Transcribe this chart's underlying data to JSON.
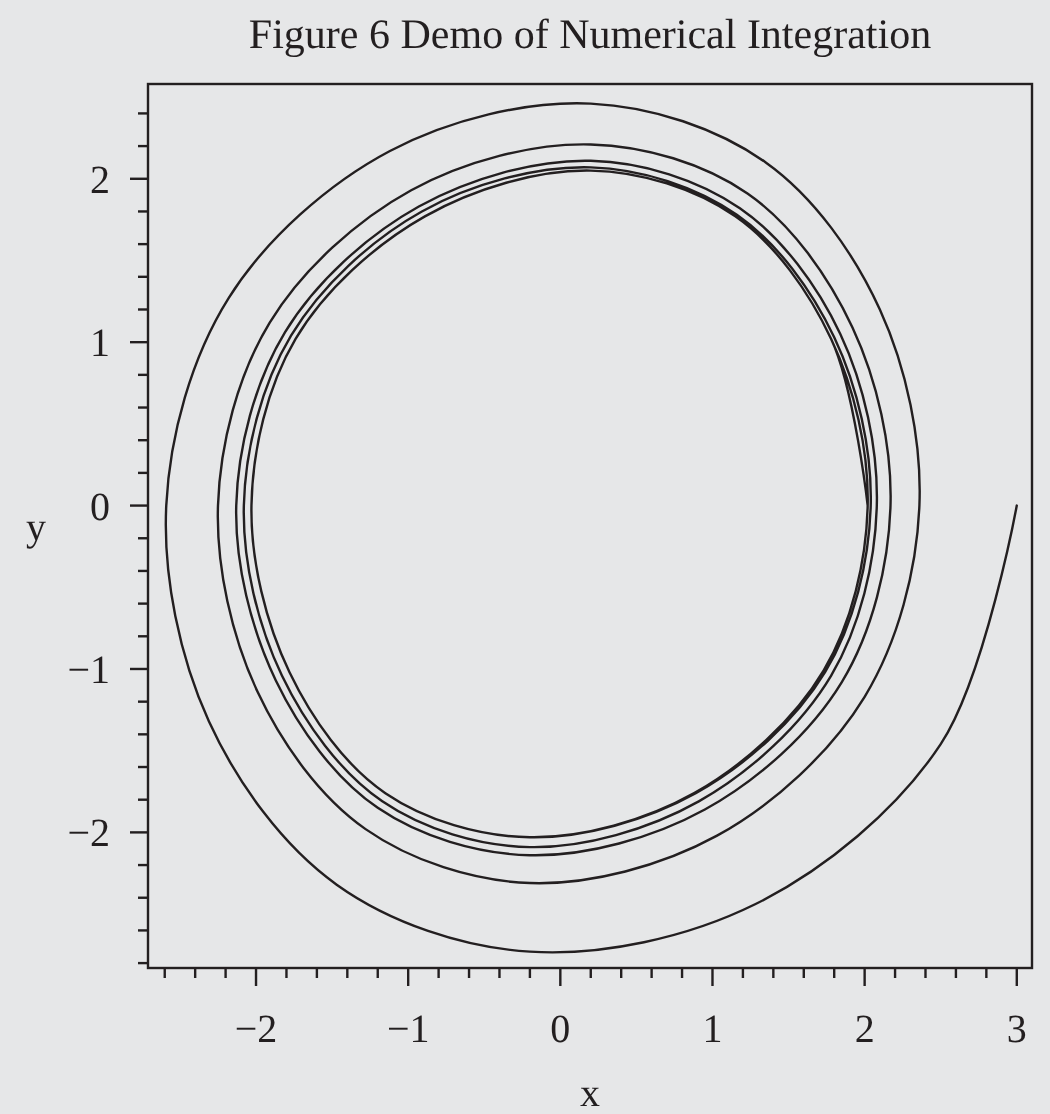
{
  "chart_data": {
    "type": "line",
    "title": "Figure 6 Demo of Numerical Integration",
    "xlabel": "x",
    "ylabel": "y",
    "xlim": [
      -2.71,
      3.1
    ],
    "ylim": [
      -2.83,
      2.58
    ],
    "xticks": [
      {
        "value": -2.6,
        "label": null
      },
      {
        "value": -2.4,
        "label": null
      },
      {
        "value": -2.2,
        "label": null
      },
      {
        "value": -2,
        "label": "−2"
      },
      {
        "value": -1.8,
        "label": null
      },
      {
        "value": -1.6,
        "label": null
      },
      {
        "value": -1.4,
        "label": null
      },
      {
        "value": -1.2,
        "label": null
      },
      {
        "value": -1,
        "label": "−1"
      },
      {
        "value": -0.8,
        "label": null
      },
      {
        "value": -0.6,
        "label": null
      },
      {
        "value": -0.4,
        "label": null
      },
      {
        "value": -0.2,
        "label": null
      },
      0,
      {
        "value": 0.2,
        "label": null
      },
      {
        "value": 0.4,
        "label": null
      },
      {
        "value": 0.6,
        "label": null
      },
      {
        "value": 0.8,
        "label": null
      },
      1,
      {
        "value": 1.2,
        "label": null
      },
      {
        "value": 1.4,
        "label": null
      },
      {
        "value": 1.6,
        "label": null
      },
      {
        "value": 1.8,
        "label": null
      },
      2,
      {
        "value": 2.2,
        "label": null
      },
      {
        "value": 2.4,
        "label": null
      },
      {
        "value": 2.6,
        "label": null
      },
      {
        "value": 2.8,
        "label": null
      },
      3
    ],
    "yticks": [
      {
        "value": -2.8,
        "label": null
      },
      {
        "value": -2.6,
        "label": null
      },
      {
        "value": -2.4,
        "label": null
      },
      {
        "value": -2.2,
        "label": null
      },
      {
        "value": -2,
        "label": "−2"
      },
      {
        "value": -1.8,
        "label": null
      },
      {
        "value": -1.6,
        "label": null
      },
      {
        "value": -1.4,
        "label": null
      },
      {
        "value": -1.2,
        "label": null
      },
      {
        "value": -1,
        "label": "−1"
      },
      {
        "value": -0.8,
        "label": null
      },
      {
        "value": -0.6,
        "label": null
      },
      {
        "value": -0.4,
        "label": null
      },
      {
        "value": -0.2,
        "label": null
      },
      0,
      {
        "value": 0.2,
        "label": null
      },
      {
        "value": 0.4,
        "label": null
      },
      {
        "value": 0.6,
        "label": null
      },
      {
        "value": 0.8,
        "label": null
      },
      1,
      {
        "value": 1.2,
        "label": null
      },
      {
        "value": 1.4,
        "label": null
      },
      {
        "value": 1.6,
        "label": null
      },
      {
        "value": 1.8,
        "label": null
      },
      2,
      {
        "value": 2.2,
        "label": null
      },
      {
        "value": 2.4,
        "label": null
      }
    ],
    "line_style": "solid",
    "series": [
      {
        "color": "#231f20",
        "x": [
          3,
          2.5,
          1.28,
          -0.2,
          -1.47,
          -2.31,
          -2.59,
          -2.18,
          -1.12,
          0.2,
          1.35,
          2.1,
          2.36,
          2,
          1.03,
          -0.2,
          -1.28,
          -1.99,
          -2.25,
          -1.91,
          -0.98,
          0.2,
          1.23,
          1.92,
          2.17,
          1.85,
          0.95,
          -0.2,
          -1.2,
          -1.87,
          -2.13,
          -1.81,
          -0.93,
          0.2,
          1.18,
          1.84,
          2.08,
          1.78,
          0.91,
          -0.2,
          -1.17,
          -1.83,
          -2.08,
          -1.77,
          -0.91,
          0.2,
          1.16,
          1.8,
          2.04,
          1.74,
          0.89,
          -0.2,
          -1.15,
          -1.78,
          -2.03,
          -1.74,
          -0.89,
          0.2,
          1.15,
          1.78,
          2.02,
          1.73,
          0.88,
          -0.2,
          -1.15,
          -1.78,
          -2.03,
          -1.74,
          -0.89,
          0.2,
          1.15,
          1.78,
          2.02
        ],
        "values": [
          0,
          -1.46,
          -2.44,
          -2.73,
          -2.32,
          -1.32,
          0,
          1.27,
          2.17,
          2.46,
          2.1,
          1.2,
          0,
          -1.17,
          -2.02,
          -2.31,
          -1.98,
          -1.14,
          0,
          1.12,
          1.93,
          2.21,
          1.91,
          1.09,
          0,
          -1.08,
          -1.86,
          -2.14,
          -1.85,
          -1.07,
          0,
          1.06,
          1.83,
          2.11,
          1.82,
          1.05,
          0,
          -1.04,
          -1.81,
          -2.09,
          -1.81,
          -1.04,
          0,
          1.04,
          1.8,
          2.07,
          1.78,
          1.03,
          0,
          -1.02,
          -1.76,
          -2.03,
          -1.76,
          -1.02,
          0,
          1.02,
          1.77,
          2.05,
          1.77,
          1.02,
          0,
          -1.01,
          -1.76,
          -2.03,
          -1.76,
          -1.02,
          0,
          1.02,
          1.77,
          2.05,
          1.77,
          1.02,
          0
        ]
      }
    ]
  }
}
